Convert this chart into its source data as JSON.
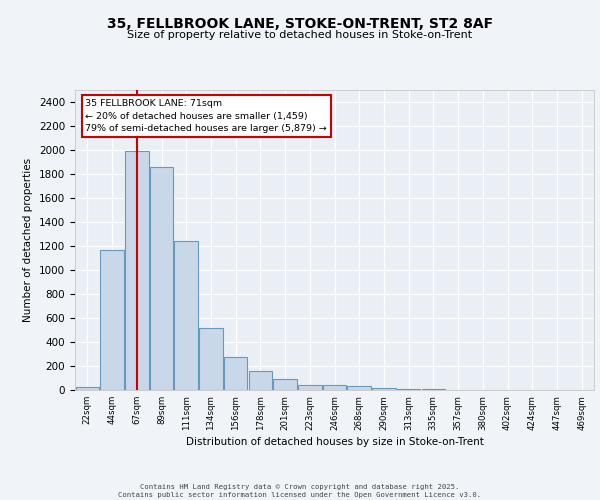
{
  "title1": "35, FELLBROOK LANE, STOKE-ON-TRENT, ST2 8AF",
  "title2": "Size of property relative to detached houses in Stoke-on-Trent",
  "xlabel": "Distribution of detached houses by size in Stoke-on-Trent",
  "ylabel": "Number of detached properties",
  "categories": [
    "22sqm",
    "44sqm",
    "67sqm",
    "89sqm",
    "111sqm",
    "134sqm",
    "156sqm",
    "178sqm",
    "201sqm",
    "223sqm",
    "246sqm",
    "268sqm",
    "290sqm",
    "313sqm",
    "335sqm",
    "357sqm",
    "380sqm",
    "402sqm",
    "424sqm",
    "447sqm",
    "469sqm"
  ],
  "values": [
    25,
    1165,
    1990,
    1860,
    1240,
    520,
    275,
    155,
    95,
    45,
    40,
    35,
    20,
    10,
    5,
    3,
    3,
    2,
    2,
    2,
    2
  ],
  "bar_color": "#c8d8e8",
  "bar_edge_color": "#6699bb",
  "annotation_line1": "35 FELLBROOK LANE: 71sqm",
  "annotation_line2": "← 20% of detached houses are smaller (1,459)",
  "annotation_line3": "79% of semi-detached houses are larger (5,879) →",
  "annotation_box_color": "#ffffff",
  "annotation_box_edge_color": "#cc0000",
  "vline_color": "#cc0000",
  "ylim_max": 2500,
  "yticks": [
    0,
    200,
    400,
    600,
    800,
    1000,
    1200,
    1400,
    1600,
    1800,
    2000,
    2200,
    2400
  ],
  "bg_color": "#eaeff6",
  "plot_bg_color": "#eaeff6",
  "grid_color": "#ffffff",
  "footer1": "Contains HM Land Registry data © Crown copyright and database right 2025.",
  "footer2": "Contains public sector information licensed under the Open Government Licence v3.0."
}
